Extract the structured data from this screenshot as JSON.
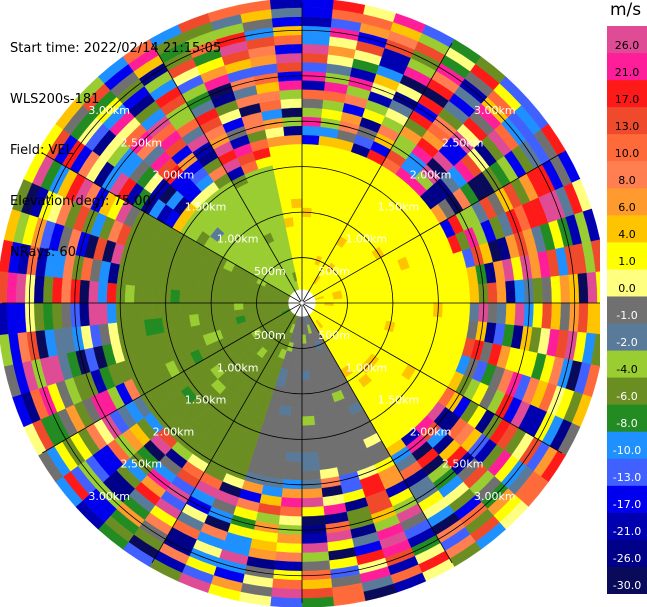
{
  "header": {
    "start_time": "Start time: 2022/02/14 21:15:05",
    "instrument": "WLS200s-181",
    "field": "Field: VEL",
    "elevation": "Elevation(deg): 75.00",
    "nrays": "NRays: 60"
  },
  "chart_data": {
    "type": "ppi",
    "field": "VEL",
    "elevation_deg": 75.0,
    "n_rays": 60,
    "range_unit": "km",
    "range_max_km": 3.3,
    "range_ring_labels": [
      "500m",
      "1.00km",
      "1.50km",
      "2.00km",
      "2.50km",
      "3.00km"
    ],
    "range_rings_km": [
      0.5,
      1.0,
      1.5,
      2.0,
      2.5,
      3.0
    ],
    "radial_lines_deg": [
      0,
      30,
      60,
      90,
      120,
      150,
      180,
      210,
      240,
      270,
      300,
      330
    ],
    "colorbar": {
      "unit": "m/s",
      "vmin": -30.0,
      "vmax": 30.0,
      "ticks": [
        "26.0",
        "21.0",
        "17.0",
        "13.0",
        "10.0",
        "8.0",
        "6.0",
        "4.0",
        "1.0",
        "0.0",
        "-1.0",
        "-2.0",
        "-4.0",
        "-6.0",
        "-8.0",
        "-10.0",
        "-13.0",
        "-17.0",
        "-21.0",
        "-26.0",
        "-30.0"
      ],
      "bins": [
        {
          "min": 26.0,
          "max": 30.0,
          "color": "#e04b96"
        },
        {
          "min": 21.0,
          "max": 26.0,
          "color": "#ff1e9a"
        },
        {
          "min": 17.0,
          "max": 21.0,
          "color": "#ff1a1a"
        },
        {
          "min": 13.0,
          "max": 17.0,
          "color": "#ef4a2c"
        },
        {
          "min": 10.0,
          "max": 13.0,
          "color": "#ff6a3a"
        },
        {
          "min": 8.0,
          "max": 10.0,
          "color": "#ff7f50"
        },
        {
          "min": 6.0,
          "max": 8.0,
          "color": "#ff9a2e"
        },
        {
          "min": 4.0,
          "max": 6.0,
          "color": "#ffc400"
        },
        {
          "min": 1.0,
          "max": 4.0,
          "color": "#ffff00"
        },
        {
          "min": 0.0,
          "max": 1.0,
          "color": "#ffff80"
        },
        {
          "min": -1.0,
          "max": 0.0,
          "color": "#707070"
        },
        {
          "min": -2.0,
          "max": -1.0,
          "color": "#5a7a9a"
        },
        {
          "min": -4.0,
          "max": -2.0,
          "color": "#9acd32"
        },
        {
          "min": -6.0,
          "max": -4.0,
          "color": "#6b8e23"
        },
        {
          "min": -8.0,
          "max": -6.0,
          "color": "#228b22"
        },
        {
          "min": -10.0,
          "max": -8.0,
          "color": "#1e90ff"
        },
        {
          "min": -13.0,
          "max": -10.0,
          "color": "#4060ff"
        },
        {
          "min": -17.0,
          "max": -13.0,
          "color": "#0000ee"
        },
        {
          "min": -21.0,
          "max": -17.0,
          "color": "#0000b0"
        },
        {
          "min": -26.0,
          "max": -21.0,
          "color": "#000088"
        },
        {
          "min": -30.0,
          "max": -26.0,
          "color": "#0a0a5a"
        }
      ]
    },
    "regions": [
      {
        "az_start": 350,
        "az_end": 70,
        "r_start_km": 0.15,
        "r_end_km": 1.8,
        "velocity": 3.0
      },
      {
        "az_start": 70,
        "az_end": 150,
        "r_start_km": 0.15,
        "r_end_km": 1.9,
        "velocity": 3.5
      },
      {
        "az_start": 150,
        "az_end": 200,
        "r_start_km": 0.15,
        "r_end_km": 2.0,
        "velocity": -1.0
      },
      {
        "az_start": 200,
        "az_end": 300,
        "r_start_km": 0.15,
        "r_end_km": 2.1,
        "velocity": -5.0
      },
      {
        "az_start": 300,
        "az_end": 350,
        "r_start_km": 0.15,
        "r_end_km": 1.6,
        "velocity": -3.0
      },
      {
        "az_start": 0,
        "az_end": 360,
        "r_start_km": 2.1,
        "r_end_km": 3.3,
        "velocity": "mixed"
      }
    ]
  }
}
